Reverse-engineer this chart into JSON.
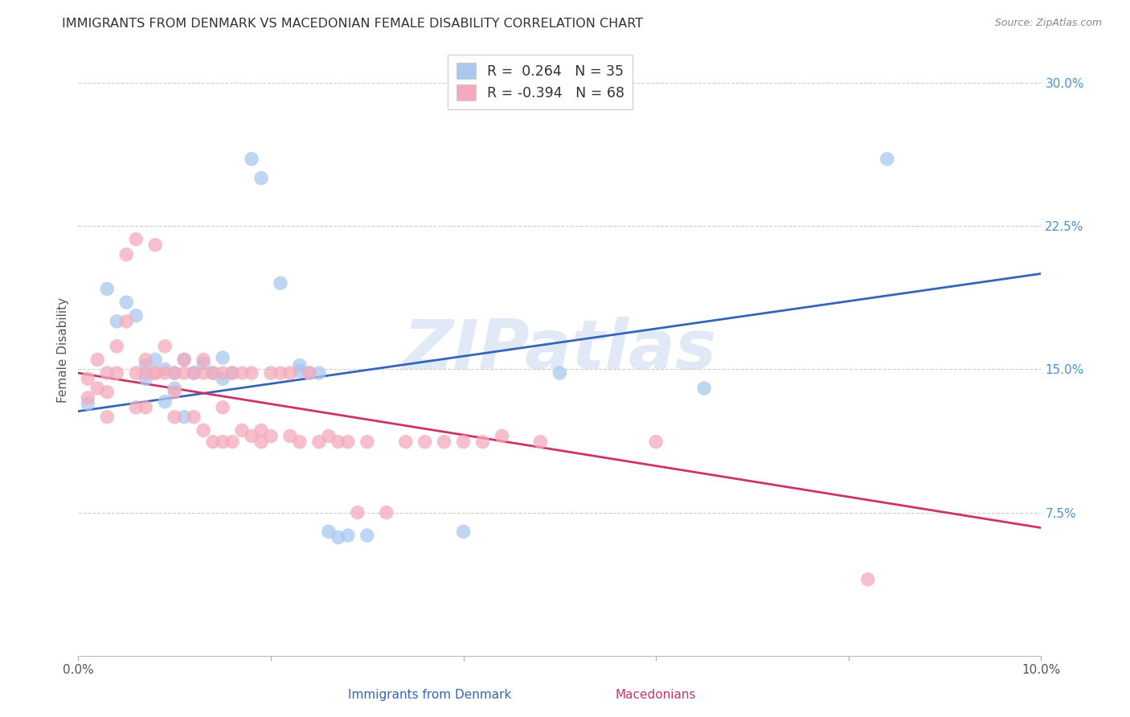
{
  "title": "IMMIGRANTS FROM DENMARK VS MACEDONIAN FEMALE DISABILITY CORRELATION CHART",
  "source": "Source: ZipAtlas.com",
  "ylabel": "Female Disability",
  "xlim": [
    0.0,
    0.1
  ],
  "ylim": [
    0.0,
    0.32
  ],
  "y_ticks_right": [
    0.075,
    0.15,
    0.225,
    0.3
  ],
  "y_tick_labels_right": [
    "7.5%",
    "15.0%",
    "22.5%",
    "30.0%"
  ],
  "color_blue": "#A8C8F0",
  "color_pink": "#F4AABC",
  "color_blue_line": "#3366BB",
  "color_pink_line": "#CC3366",
  "watermark": "ZIPatlas",
  "blue_scatter_x": [
    0.001,
    0.003,
    0.004,
    0.005,
    0.006,
    0.007,
    0.007,
    0.008,
    0.009,
    0.009,
    0.01,
    0.01,
    0.011,
    0.011,
    0.012,
    0.013,
    0.014,
    0.015,
    0.015,
    0.016,
    0.018,
    0.019,
    0.021,
    0.023,
    0.023,
    0.024,
    0.025,
    0.026,
    0.027,
    0.028,
    0.03,
    0.04,
    0.05,
    0.065,
    0.084
  ],
  "blue_scatter_y": [
    0.132,
    0.192,
    0.175,
    0.185,
    0.178,
    0.152,
    0.145,
    0.155,
    0.15,
    0.133,
    0.148,
    0.14,
    0.155,
    0.125,
    0.148,
    0.153,
    0.148,
    0.156,
    0.145,
    0.148,
    0.26,
    0.25,
    0.195,
    0.152,
    0.149,
    0.148,
    0.148,
    0.065,
    0.062,
    0.063,
    0.063,
    0.065,
    0.148,
    0.14,
    0.26
  ],
  "pink_scatter_x": [
    0.001,
    0.001,
    0.002,
    0.002,
    0.003,
    0.003,
    0.003,
    0.004,
    0.004,
    0.005,
    0.005,
    0.006,
    0.006,
    0.006,
    0.007,
    0.007,
    0.007,
    0.008,
    0.008,
    0.008,
    0.009,
    0.009,
    0.01,
    0.01,
    0.01,
    0.011,
    0.011,
    0.012,
    0.012,
    0.013,
    0.013,
    0.013,
    0.014,
    0.014,
    0.015,
    0.015,
    0.015,
    0.016,
    0.016,
    0.017,
    0.017,
    0.018,
    0.018,
    0.019,
    0.019,
    0.02,
    0.02,
    0.021,
    0.022,
    0.022,
    0.023,
    0.024,
    0.025,
    0.026,
    0.027,
    0.028,
    0.029,
    0.03,
    0.032,
    0.034,
    0.036,
    0.038,
    0.04,
    0.042,
    0.044,
    0.048,
    0.06,
    0.082
  ],
  "pink_scatter_y": [
    0.145,
    0.135,
    0.155,
    0.14,
    0.148,
    0.138,
    0.125,
    0.162,
    0.148,
    0.21,
    0.175,
    0.218,
    0.148,
    0.13,
    0.155,
    0.148,
    0.13,
    0.148,
    0.215,
    0.148,
    0.162,
    0.148,
    0.148,
    0.138,
    0.125,
    0.155,
    0.148,
    0.148,
    0.125,
    0.155,
    0.148,
    0.118,
    0.148,
    0.112,
    0.148,
    0.13,
    0.112,
    0.148,
    0.112,
    0.148,
    0.118,
    0.115,
    0.148,
    0.112,
    0.118,
    0.148,
    0.115,
    0.148,
    0.148,
    0.115,
    0.112,
    0.148,
    0.112,
    0.115,
    0.112,
    0.112,
    0.075,
    0.112,
    0.075,
    0.112,
    0.112,
    0.112,
    0.112,
    0.112,
    0.115,
    0.112,
    0.112,
    0.04
  ],
  "blue_line_x": [
    0.0,
    0.1
  ],
  "blue_line_y": [
    0.128,
    0.2
  ],
  "pink_line_x": [
    0.0,
    0.1
  ],
  "pink_line_y": [
    0.148,
    0.067
  ],
  "grid_color": "#CCCCCC",
  "background_color": "#FFFFFF",
  "legend_text_color": "#333333",
  "legend_num_color": "#3366BB",
  "tick_color": "#4A90D9"
}
